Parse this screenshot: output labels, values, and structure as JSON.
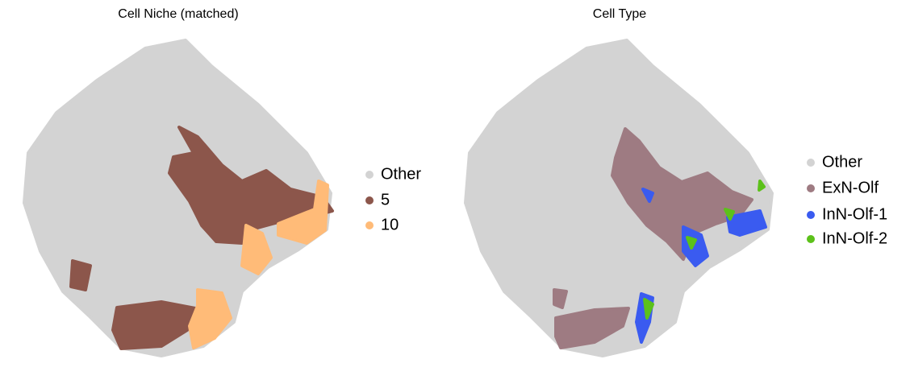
{
  "chart_data": [
    {
      "type": "scatter",
      "title": "Cell Niche (matched)",
      "legend": [
        {
          "name": "Other",
          "color": "#d3d3d3"
        },
        {
          "name": "5",
          "color": "#8c564b"
        },
        {
          "name": "10",
          "color": "#ffbb78"
        }
      ]
    },
    {
      "type": "scatter",
      "title": "Cell Type",
      "legend": [
        {
          "name": "Other",
          "color": "#d3d3d3"
        },
        {
          "name": "ExN-Olf",
          "color": "#9e7b82"
        },
        {
          "name": "InN-Olf-1",
          "color": "#3a5bf0"
        },
        {
          "name": "InN-Olf-2",
          "color": "#5cc11a"
        }
      ]
    }
  ]
}
